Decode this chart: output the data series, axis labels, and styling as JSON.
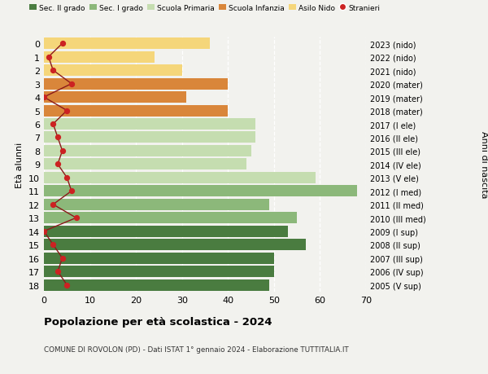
{
  "ages": [
    18,
    17,
    16,
    15,
    14,
    13,
    12,
    11,
    10,
    9,
    8,
    7,
    6,
    5,
    4,
    3,
    2,
    1,
    0
  ],
  "bar_values": [
    49,
    50,
    50,
    57,
    53,
    55,
    49,
    68,
    59,
    44,
    45,
    46,
    46,
    40,
    31,
    40,
    30,
    24,
    36
  ],
  "stranieri_values": [
    5,
    3,
    4,
    2,
    0,
    7,
    2,
    6,
    5,
    3,
    4,
    3,
    2,
    5,
    0,
    6,
    2,
    1,
    4
  ],
  "right_labels": [
    "2005 (V sup)",
    "2006 (IV sup)",
    "2007 (III sup)",
    "2008 (II sup)",
    "2009 (I sup)",
    "2010 (III med)",
    "2011 (II med)",
    "2012 (I med)",
    "2013 (V ele)",
    "2014 (IV ele)",
    "2015 (III ele)",
    "2016 (II ele)",
    "2017 (I ele)",
    "2018 (mater)",
    "2019 (mater)",
    "2020 (mater)",
    "2021 (nido)",
    "2022 (nido)",
    "2023 (nido)"
  ],
  "bar_colors": [
    "#4a7c40",
    "#4a7c40",
    "#4a7c40",
    "#4a7c40",
    "#4a7c40",
    "#8cb87a",
    "#8cb87a",
    "#8cb87a",
    "#c5ddb0",
    "#c5ddb0",
    "#c5ddb0",
    "#c5ddb0",
    "#c5ddb0",
    "#d9863a",
    "#d9863a",
    "#d9863a",
    "#f5d67a",
    "#f5d67a",
    "#f5d67a"
  ],
  "legend_labels": [
    "Sec. II grado",
    "Sec. I grado",
    "Scuola Primaria",
    "Scuola Infanzia",
    "Asilo Nido",
    "Stranieri"
  ],
  "legend_colors": [
    "#4a7c40",
    "#8cb87a",
    "#c5ddb0",
    "#d9863a",
    "#f5d67a",
    "#cc2222"
  ],
  "title": "Popolazione per età scolastica - 2024",
  "subtitle": "COMUNE DI ROVOLON (PD) - Dati ISTAT 1° gennaio 2024 - Elaborazione TUTTITALIA.IT",
  "ylabel_left": "Età alunni",
  "ylabel_right": "Anni di nascita",
  "xlim": [
    0,
    70
  ],
  "stranieri_color": "#cc2222",
  "line_color": "#8b1a1a",
  "bg_color": "#f2f2ee",
  "plot_bg": "#f2f2ee"
}
